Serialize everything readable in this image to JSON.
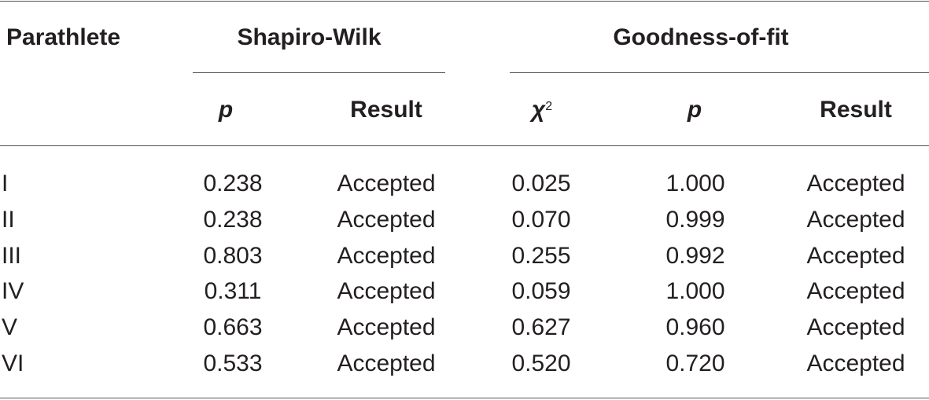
{
  "table": {
    "headers": {
      "col_parathlete": "Parathlete",
      "group_shapiro": "Shapiro-Wilk",
      "group_goodness": "Goodness-of-fit",
      "sw_p": "p",
      "sw_result": "Result",
      "gof_chi": "χ",
      "gof_chi_sup": "2",
      "gof_p": "p",
      "gof_result": "Result"
    },
    "rows": [
      {
        "parathlete": "I",
        "sw_p": "0.238",
        "sw_result": "Accepted",
        "chi2": "0.025",
        "gof_p": "1.000",
        "gof_result": "Accepted"
      },
      {
        "parathlete": "II",
        "sw_p": "0.238",
        "sw_result": "Accepted",
        "chi2": "0.070",
        "gof_p": "0.999",
        "gof_result": "Accepted"
      },
      {
        "parathlete": "III",
        "sw_p": "0.803",
        "sw_result": "Accepted",
        "chi2": "0.255",
        "gof_p": "0.992",
        "gof_result": "Accepted"
      },
      {
        "parathlete": "IV",
        "sw_p": "0.311",
        "sw_result": "Accepted",
        "chi2": "0.059",
        "gof_p": "1.000",
        "gof_result": "Accepted"
      },
      {
        "parathlete": "V",
        "sw_p": "0.663",
        "sw_result": "Accepted",
        "chi2": "0.627",
        "gof_p": "0.960",
        "gof_result": "Accepted"
      },
      {
        "parathlete": "VI",
        "sw_p": "0.533",
        "sw_result": "Accepted",
        "chi2": "0.520",
        "gof_p": "0.720",
        "gof_result": "Accepted"
      }
    ]
  }
}
